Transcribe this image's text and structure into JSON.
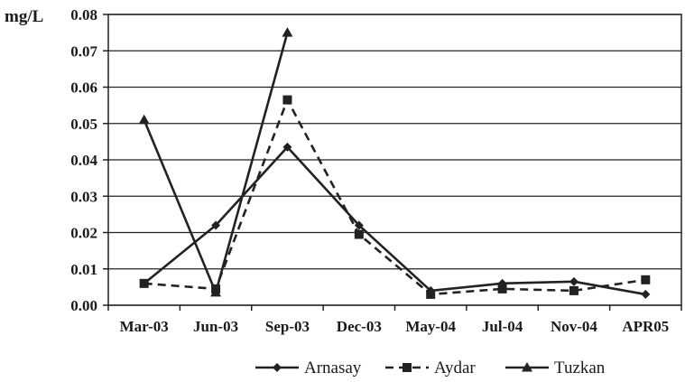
{
  "chart_data": {
    "type": "line",
    "title": "",
    "xlabel": "",
    "ylabel": "mg/L",
    "categories": [
      "Mar-03",
      "Jun-03",
      "Sep-03",
      "Dec-03",
      "May-04",
      "Jul-04",
      "Nov-04",
      "APR05"
    ],
    "ylim": [
      0,
      0.08
    ],
    "yticks": [
      "0.00",
      "0.01",
      "0.02",
      "0.03",
      "0.04",
      "0.05",
      "0.06",
      "0.07",
      "0.08"
    ],
    "grid": true,
    "legend": "bottom",
    "series": [
      {
        "name": "Arnasay",
        "marker": "diamond",
        "dash": "solid",
        "values": [
          0.006,
          0.022,
          0.0435,
          0.022,
          0.004,
          0.006,
          0.0065,
          0.003
        ]
      },
      {
        "name": "Aydar",
        "marker": "square",
        "dash": "dashed",
        "values": [
          0.006,
          0.0045,
          0.0565,
          0.0195,
          0.003,
          0.0045,
          0.004,
          0.007
        ]
      },
      {
        "name": "Tuzkan",
        "marker": "triangle",
        "dash": "solid",
        "values": [
          0.051,
          0.0035,
          0.075,
          null,
          null,
          null,
          null,
          null
        ]
      }
    ]
  }
}
